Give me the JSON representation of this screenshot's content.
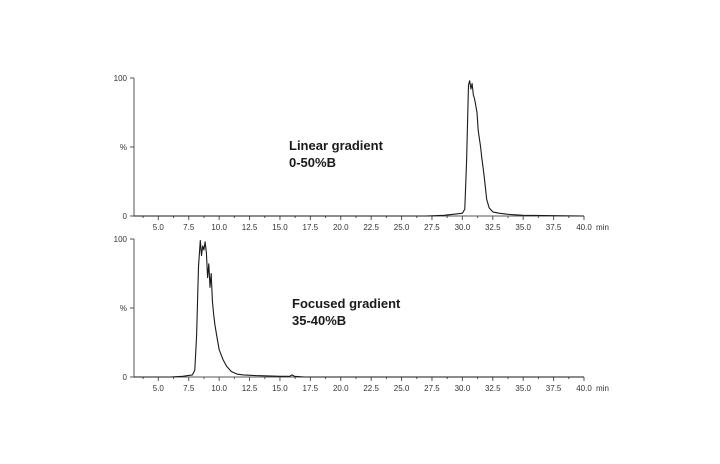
{
  "chart_data": [
    {
      "type": "line",
      "annotation": [
        "Linear gradient",
        "0-50%B"
      ],
      "x_ticks": [
        "5.0",
        "7.5",
        "10.0",
        "12.5",
        "15.0",
        "17.5",
        "20.0",
        "22.5",
        "25.0",
        "27.5",
        "30.0",
        "32.5",
        "35.0",
        "37.5",
        "40.0"
      ],
      "x_unit": "min",
      "y_ticks": [
        "0",
        "%",
        "100"
      ],
      "xlim": [
        3.0,
        40.0
      ],
      "ylim": [
        0,
        100
      ],
      "series": [
        {
          "x": [
            3.0,
            27.0,
            28.5,
            29.5,
            30.0,
            30.2,
            30.35,
            30.5,
            30.6,
            30.7,
            30.8,
            30.9,
            31.0,
            31.1,
            31.2,
            31.3,
            31.4,
            31.5,
            31.6,
            31.7,
            31.8,
            31.9,
            32.0,
            32.2,
            32.5,
            33.0,
            33.5,
            34.0,
            35.0,
            40.0
          ],
          "y": [
            0,
            0,
            0.5,
            1.5,
            2,
            5,
            40,
            95,
            98,
            92,
            96,
            88,
            85,
            80,
            75,
            62,
            56,
            50,
            42,
            35,
            28,
            20,
            12,
            6,
            3,
            2,
            1.5,
            1,
            0.5,
            0
          ]
        }
      ]
    },
    {
      "type": "line",
      "annotation": [
        "Focused gradient",
        "35-40%B"
      ],
      "x_ticks": [
        "5.0",
        "7.5",
        "10.0",
        "12.5",
        "15.0",
        "17.5",
        "20.0",
        "22.5",
        "25.0",
        "27.5",
        "30.0",
        "32.5",
        "35.0",
        "37.5",
        "40.0"
      ],
      "x_unit": "min",
      "y_ticks": [
        "0",
        "%",
        "100"
      ],
      "xlim": [
        3.0,
        40.0
      ],
      "ylim": [
        0,
        100
      ],
      "series": [
        {
          "x": [
            3.0,
            6.0,
            7.0,
            7.8,
            8.0,
            8.15,
            8.3,
            8.45,
            8.55,
            8.65,
            8.75,
            8.85,
            8.95,
            9.05,
            9.15,
            9.25,
            9.35,
            9.45,
            9.55,
            9.65,
            9.8,
            10.0,
            10.3,
            10.6,
            11.0,
            11.5,
            12.0,
            13.0,
            15.0,
            15.8,
            16.0,
            16.2,
            17.0,
            40.0
          ],
          "y": [
            0,
            0,
            0.5,
            1.5,
            5,
            30,
            80,
            99,
            88,
            95,
            92,
            98,
            90,
            72,
            82,
            65,
            75,
            55,
            45,
            38,
            30,
            20,
            13,
            8,
            4,
            2,
            1.5,
            1,
            0.5,
            0.5,
            1.5,
            0.5,
            0,
            0
          ]
        }
      ]
    }
  ]
}
